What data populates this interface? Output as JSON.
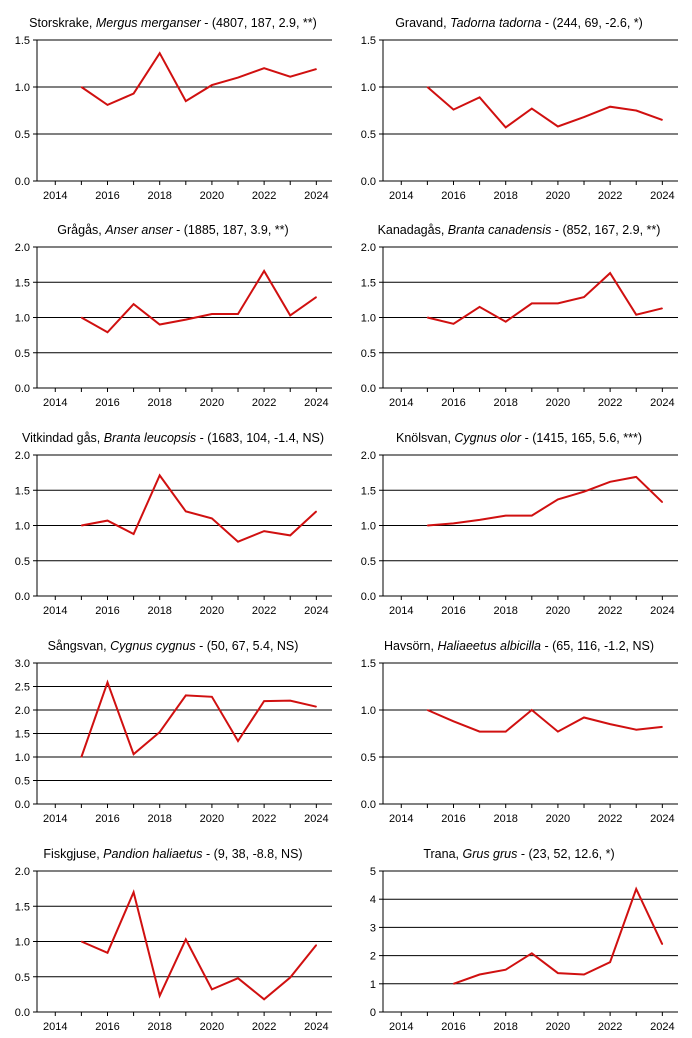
{
  "colors": {
    "line": "#d01010",
    "axis": "#000000",
    "grid": "#000000"
  },
  "chart_data": [
    {
      "type": "line",
      "title_common": "Storskrake",
      "title_latin": "Mergus merganser",
      "title_stats": "(4807, 187, 2.9, **)",
      "x": [
        2015,
        2016,
        2017,
        2018,
        2019,
        2020,
        2021,
        2022,
        2023,
        2024
      ],
      "values": [
        1.0,
        0.81,
        0.93,
        1.36,
        0.85,
        1.02,
        1.1,
        1.2,
        1.11,
        1.19
      ],
      "xlim": [
        2013.3,
        2024.6
      ],
      "ylim": [
        0,
        1.5
      ],
      "yticks": [
        "0.0",
        "0.5",
        "1.0",
        "1.5"
      ],
      "xticks": [
        "2014",
        "2016",
        "2018",
        "2020",
        "2022",
        "2024"
      ]
    },
    {
      "type": "line",
      "title_common": "Gravand",
      "title_latin": "Tadorna tadorna",
      "title_stats": "(244, 69, -2.6, *)",
      "x": [
        2015,
        2016,
        2017,
        2018,
        2019,
        2020,
        2021,
        2022,
        2023,
        2024
      ],
      "values": [
        1.0,
        0.76,
        0.89,
        0.57,
        0.77,
        0.58,
        0.68,
        0.79,
        0.75,
        0.65
      ],
      "xlim": [
        2013.3,
        2024.6
      ],
      "ylim": [
        0,
        1.5
      ],
      "yticks": [
        "0.0",
        "0.5",
        "1.0",
        "1.5"
      ],
      "xticks": [
        "2014",
        "2016",
        "2018",
        "2020",
        "2022",
        "2024"
      ]
    },
    {
      "type": "line",
      "title_common": "Grågås",
      "title_latin": "Anser anser",
      "title_stats": "(1885, 187, 3.9, **)",
      "x": [
        2015,
        2016,
        2017,
        2018,
        2019,
        2020,
        2021,
        2022,
        2023,
        2024
      ],
      "values": [
        1.0,
        0.79,
        1.19,
        0.9,
        0.97,
        1.05,
        1.05,
        1.66,
        1.03,
        1.29
      ],
      "xlim": [
        2013.3,
        2024.6
      ],
      "ylim": [
        0,
        2.0
      ],
      "yticks": [
        "0.0",
        "0.5",
        "1.0",
        "1.5",
        "2.0"
      ],
      "xticks": [
        "2014",
        "2016",
        "2018",
        "2020",
        "2022",
        "2024"
      ]
    },
    {
      "type": "line",
      "title_common": "Kanadagås",
      "title_latin": "Branta canadensis",
      "title_stats": "(852, 167, 2.9, **)",
      "x": [
        2015,
        2016,
        2017,
        2018,
        2019,
        2020,
        2021,
        2022,
        2023,
        2024
      ],
      "values": [
        1.0,
        0.91,
        1.15,
        0.94,
        1.2,
        1.2,
        1.29,
        1.63,
        1.04,
        1.13
      ],
      "xlim": [
        2013.3,
        2024.6
      ],
      "ylim": [
        0,
        2.0
      ],
      "yticks": [
        "0.0",
        "0.5",
        "1.0",
        "1.5",
        "2.0"
      ],
      "xticks": [
        "2014",
        "2016",
        "2018",
        "2020",
        "2022",
        "2024"
      ]
    },
    {
      "type": "line",
      "title_common": "Vitkindad gås",
      "title_latin": "Branta leucopsis",
      "title_stats": "(1683, 104, -1.4, NS)",
      "x": [
        2015,
        2016,
        2017,
        2018,
        2019,
        2020,
        2021,
        2022,
        2023,
        2024
      ],
      "values": [
        1.0,
        1.07,
        0.88,
        1.71,
        1.2,
        1.1,
        0.77,
        0.92,
        0.86,
        1.2
      ],
      "xlim": [
        2013.3,
        2024.6
      ],
      "ylim": [
        0,
        2.0
      ],
      "yticks": [
        "0.0",
        "0.5",
        "1.0",
        "1.5",
        "2.0"
      ],
      "xticks": [
        "2014",
        "2016",
        "2018",
        "2020",
        "2022",
        "2024"
      ]
    },
    {
      "type": "line",
      "title_common": "Knölsvan",
      "title_latin": "Cygnus olor",
      "title_stats": "(1415, 165, 5.6, ***)",
      "x": [
        2015,
        2016,
        2017,
        2018,
        2019,
        2020,
        2021,
        2022,
        2023,
        2024
      ],
      "values": [
        1.0,
        1.03,
        1.08,
        1.14,
        1.14,
        1.37,
        1.48,
        1.62,
        1.69,
        1.33
      ],
      "xlim": [
        2013.3,
        2024.6
      ],
      "ylim": [
        0,
        2.0
      ],
      "yticks": [
        "0.0",
        "0.5",
        "1.0",
        "1.5",
        "2.0"
      ],
      "xticks": [
        "2014",
        "2016",
        "2018",
        "2020",
        "2022",
        "2024"
      ]
    },
    {
      "type": "line",
      "title_common": "Sångsvan",
      "title_latin": "Cygnus cygnus",
      "title_stats": "(50, 67, 5.4, NS)",
      "x": [
        2015,
        2016,
        2017,
        2018,
        2019,
        2020,
        2021,
        2022,
        2023,
        2024
      ],
      "values": [
        1.0,
        2.59,
        1.06,
        1.53,
        2.31,
        2.28,
        1.34,
        2.19,
        2.2,
        2.07
      ],
      "xlim": [
        2013.3,
        2024.6
      ],
      "ylim": [
        0,
        3.0
      ],
      "yticks": [
        "0.0",
        "0.5",
        "1.0",
        "1.5",
        "2.0",
        "2.5",
        "3.0"
      ],
      "xticks": [
        "2014",
        "2016",
        "2018",
        "2020",
        "2022",
        "2024"
      ]
    },
    {
      "type": "line",
      "title_common": "Havsörn",
      "title_latin": "Haliaeetus albicilla",
      "title_stats": "(65, 116, -1.2, NS)",
      "x": [
        2015,
        2016,
        2017,
        2018,
        2019,
        2020,
        2021,
        2022,
        2023,
        2024
      ],
      "values": [
        1.0,
        0.88,
        0.77,
        0.77,
        1.0,
        0.77,
        0.92,
        0.85,
        0.79,
        0.82
      ],
      "xlim": [
        2013.3,
        2024.6
      ],
      "ylim": [
        0,
        1.5
      ],
      "yticks": [
        "0.0",
        "0.5",
        "1.0",
        "1.5"
      ],
      "xticks": [
        "2014",
        "2016",
        "2018",
        "2020",
        "2022",
        "2024"
      ]
    },
    {
      "type": "line",
      "title_common": "Fiskgjuse",
      "title_latin": "Pandion haliaetus",
      "title_stats": "(9, 38, -8.8, NS)",
      "x": [
        2015,
        2016,
        2017,
        2018,
        2019,
        2020,
        2021,
        2022,
        2023,
        2024
      ],
      "values": [
        1.0,
        0.84,
        1.7,
        0.23,
        1.03,
        0.32,
        0.48,
        0.18,
        0.49,
        0.95
      ],
      "xlim": [
        2013.3,
        2024.6
      ],
      "ylim": [
        0,
        2.0
      ],
      "yticks": [
        "0.0",
        "0.5",
        "1.0",
        "1.5",
        "2.0"
      ],
      "xticks": [
        "2014",
        "2016",
        "2018",
        "2020",
        "2022",
        "2024"
      ]
    },
    {
      "type": "line",
      "title_common": "Trana",
      "title_latin": "Grus grus",
      "title_stats": "(23, 52, 12.6, *)",
      "x": [
        2016,
        2017,
        2018,
        2019,
        2020,
        2021,
        2022,
        2023,
        2024
      ],
      "values": [
        1.0,
        1.33,
        1.5,
        2.08,
        1.38,
        1.33,
        1.77,
        4.36,
        2.4
      ],
      "xlim": [
        2013.3,
        2024.6
      ],
      "ylim": [
        0,
        5
      ],
      "yticks": [
        "0",
        "1",
        "2",
        "3",
        "4",
        "5"
      ],
      "xticks": [
        "2014",
        "2016",
        "2018",
        "2020",
        "2022",
        "2024"
      ]
    }
  ]
}
